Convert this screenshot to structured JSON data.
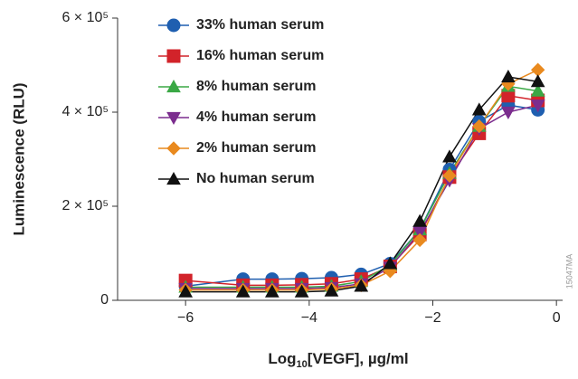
{
  "chart_data": {
    "type": "line",
    "ylabel": "Luminescence (RLU)",
    "xlabel_main": "Log",
    "xlabel_sub": "10",
    "xlabel_rest": "[VEGF], µg/ml",
    "figure_id": "15047MA",
    "x": [
      -6,
      -5.07,
      -4.6,
      -4.12,
      -3.64,
      -3.16,
      -2.69,
      -2.21,
      -1.73,
      -1.25,
      -0.78,
      -0.3
    ],
    "xlim": [
      -7.1,
      0.1
    ],
    "xticks": [
      {
        "value": -6,
        "label": "−6"
      },
      {
        "value": -4,
        "label": "−4"
      },
      {
        "value": -2,
        "label": "−2"
      },
      0
    ],
    "ylim": [
      0,
      600000
    ],
    "yticks": [
      0,
      {
        "value": 200000,
        "label": "2 × 10⁵"
      },
      {
        "value": 400000,
        "label": "4 × 10⁵"
      },
      {
        "value": 600000,
        "label": "6 × 10⁵"
      }
    ],
    "grid": false,
    "legend": "upper left",
    "series": [
      {
        "name": "33% human serum",
        "color": "#1f5fb0",
        "marker": "circle",
        "values": [
          30000,
          45000,
          45000,
          46000,
          48000,
          55000,
          78000,
          150000,
          278000,
          380000,
          415000,
          405000
        ]
      },
      {
        "name": "16% human serum",
        "color": "#d2232a",
        "marker": "square",
        "values": [
          42000,
          32000,
          32000,
          33000,
          35000,
          45000,
          72000,
          140000,
          262000,
          355000,
          435000,
          425000
        ]
      },
      {
        "name": "8% human serum",
        "color": "#3aa845",
        "marker": "triangle",
        "values": [
          28000,
          28000,
          28000,
          28000,
          30000,
          40000,
          75000,
          150000,
          270000,
          370000,
          455000,
          445000
        ]
      },
      {
        "name": "4% human serum",
        "color": "#7b2d8e",
        "marker": "triangle-down",
        "values": [
          25000,
          25000,
          25000,
          25000,
          27000,
          35000,
          70000,
          145000,
          255000,
          365000,
          400000,
          415000
        ]
      },
      {
        "name": "2% human serum",
        "color": "#e98a1f",
        "marker": "diamond",
        "values": [
          22000,
          22000,
          22000,
          22000,
          24000,
          32000,
          62000,
          128000,
          265000,
          370000,
          460000,
          490000
        ]
      },
      {
        "name": "No human serum",
        "color": "#111111",
        "marker": "triangle",
        "values": [
          18000,
          18000,
          18000,
          18000,
          20000,
          30000,
          78000,
          168000,
          305000,
          405000,
          475000,
          465000
        ]
      }
    ]
  }
}
